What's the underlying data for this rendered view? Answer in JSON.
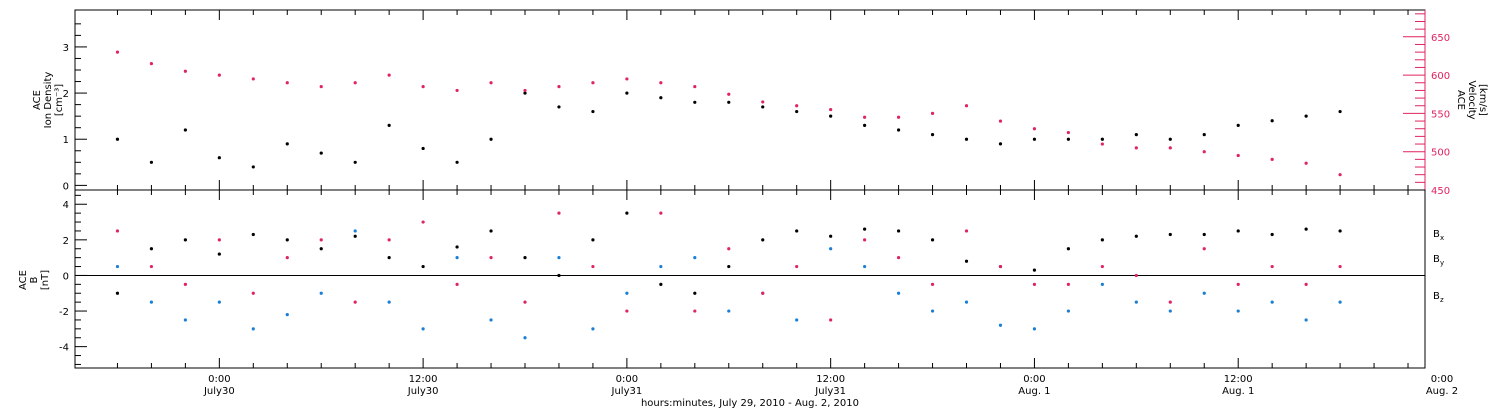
{
  "chart_data": [
    {
      "type": "scatter",
      "panel": "density-velocity",
      "ylabel_left": [
        "ACE",
        "Ion Density",
        "[cm⁻³]"
      ],
      "ylabel_right": [
        "ACE",
        "Velocity",
        "[km/s]"
      ],
      "ylim_left": [
        -0.1,
        3.8
      ],
      "ylim_right": [
        450,
        685
      ],
      "yticks_left": [
        "0",
        "1",
        "2",
        "3"
      ],
      "yticks_right": [
        "450",
        "500",
        "550",
        "600",
        "650"
      ],
      "series": [
        {
          "axis": "left",
          "color": "#000000",
          "points": [
            [
              -6,
              1.0
            ],
            [
              -4,
              0.5
            ],
            [
              -2,
              1.2
            ],
            [
              0,
              0.6
            ],
            [
              2,
              0.4
            ],
            [
              4,
              0.9
            ],
            [
              6,
              0.7
            ],
            [
              8,
              0.5
            ],
            [
              10,
              1.3
            ],
            [
              12,
              0.8
            ],
            [
              14,
              0.5
            ],
            [
              16,
              1.0
            ],
            [
              18,
              2.0
            ],
            [
              20,
              1.7
            ],
            [
              22,
              1.6
            ],
            [
              24,
              2.0
            ],
            [
              26,
              1.9
            ],
            [
              28,
              1.8
            ],
            [
              30,
              1.8
            ],
            [
              32,
              1.7
            ],
            [
              34,
              1.6
            ],
            [
              36,
              1.5
            ],
            [
              38,
              1.3
            ],
            [
              40,
              1.2
            ],
            [
              42,
              1.1
            ],
            [
              44,
              1.0
            ],
            [
              46,
              0.9
            ],
            [
              48,
              1.0
            ],
            [
              50,
              1.0
            ],
            [
              52,
              1.0
            ],
            [
              54,
              1.1
            ],
            [
              56,
              1.0
            ],
            [
              58,
              1.1
            ],
            [
              60,
              1.3
            ],
            [
              62,
              1.4
            ],
            [
              64,
              1.5
            ],
            [
              66,
              1.6
            ]
          ]
        },
        {
          "axis": "right",
          "color": "#e0245e",
          "points": [
            [
              -6,
              630
            ],
            [
              -4,
              615
            ],
            [
              -2,
              605
            ],
            [
              0,
              600
            ],
            [
              2,
              595
            ],
            [
              4,
              590
            ],
            [
              6,
              585
            ],
            [
              8,
              590
            ],
            [
              10,
              600
            ],
            [
              12,
              585
            ],
            [
              14,
              580
            ],
            [
              16,
              590
            ],
            [
              18,
              580
            ],
            [
              20,
              585
            ],
            [
              22,
              590
            ],
            [
              24,
              595
            ],
            [
              26,
              590
            ],
            [
              28,
              585
            ],
            [
              30,
              575
            ],
            [
              32,
              565
            ],
            [
              34,
              560
            ],
            [
              36,
              555
            ],
            [
              38,
              545
            ],
            [
              40,
              545
            ],
            [
              42,
              550
            ],
            [
              44,
              560
            ],
            [
              46,
              540
            ],
            [
              48,
              530
            ],
            [
              50,
              525
            ],
            [
              52,
              510
            ],
            [
              54,
              505
            ],
            [
              56,
              505
            ],
            [
              58,
              500
            ],
            [
              60,
              495
            ],
            [
              62,
              490
            ],
            [
              64,
              485
            ],
            [
              66,
              470
            ]
          ]
        }
      ]
    },
    {
      "type": "scatter",
      "panel": "magnetic-field",
      "ylabel": [
        "ACE",
        "B",
        "[nT]"
      ],
      "ylim": [
        -5.2,
        4.8
      ],
      "yticks": [
        "-4",
        "-2",
        "0",
        "2",
        "4"
      ],
      "legend": [
        {
          "label": "B",
          "sub": "x",
          "color": "#000000"
        },
        {
          "label": "B",
          "sub": "y",
          "color": "#1a7fd4"
        },
        {
          "label": "B",
          "sub": "z",
          "color": "#e0245e"
        }
      ],
      "series": [
        {
          "name": "Bx",
          "color": "#000000",
          "points": [
            [
              -6,
              -1.0
            ],
            [
              -4,
              1.5
            ],
            [
              -2,
              2.0
            ],
            [
              0,
              1.2
            ],
            [
              2,
              2.3
            ],
            [
              4,
              2.0
            ],
            [
              6,
              1.5
            ],
            [
              8,
              2.2
            ],
            [
              10,
              1.0
            ],
            [
              12,
              0.5
            ],
            [
              14,
              1.6
            ],
            [
              16,
              2.5
            ],
            [
              18,
              1.0
            ],
            [
              20,
              0.0
            ],
            [
              22,
              2.0
            ],
            [
              24,
              3.5
            ],
            [
              26,
              -0.5
            ],
            [
              28,
              -1.0
            ],
            [
              30,
              0.5
            ],
            [
              32,
              2.0
            ],
            [
              34,
              2.5
            ],
            [
              36,
              2.2
            ],
            [
              38,
              2.6
            ],
            [
              40,
              2.5
            ],
            [
              42,
              2.0
            ],
            [
              44,
              0.8
            ],
            [
              46,
              0.5
            ],
            [
              48,
              0.3
            ],
            [
              50,
              1.5
            ],
            [
              52,
              2.0
            ],
            [
              54,
              2.2
            ],
            [
              56,
              2.3
            ],
            [
              58,
              2.3
            ],
            [
              60,
              2.5
            ],
            [
              62,
              2.3
            ],
            [
              64,
              2.6
            ],
            [
              66,
              2.5
            ]
          ]
        },
        {
          "name": "By",
          "color": "#1a7fd4",
          "points": [
            [
              -6,
              0.5
            ],
            [
              -4,
              -1.5
            ],
            [
              -2,
              -2.5
            ],
            [
              0,
              -1.5
            ],
            [
              2,
              -3.0
            ],
            [
              4,
              -2.2
            ],
            [
              6,
              -1.0
            ],
            [
              8,
              2.5
            ],
            [
              10,
              -1.5
            ],
            [
              12,
              -3.0
            ],
            [
              14,
              1.0
            ],
            [
              16,
              -2.5
            ],
            [
              18,
              -3.5
            ],
            [
              20,
              1.0
            ],
            [
              22,
              -3.0
            ],
            [
              24,
              -1.0
            ],
            [
              26,
              0.5
            ],
            [
              28,
              1.0
            ],
            [
              30,
              -2.0
            ],
            [
              32,
              -1.0
            ],
            [
              34,
              -2.5
            ],
            [
              36,
              1.5
            ],
            [
              38,
              0.5
            ],
            [
              40,
              -1.0
            ],
            [
              42,
              -2.0
            ],
            [
              44,
              -1.5
            ],
            [
              46,
              -2.8
            ],
            [
              48,
              -3.0
            ],
            [
              50,
              -2.0
            ],
            [
              52,
              -0.5
            ],
            [
              54,
              -1.5
            ],
            [
              56,
              -2.0
            ],
            [
              58,
              -1.0
            ],
            [
              60,
              -2.0
            ],
            [
              62,
              -1.5
            ],
            [
              64,
              -2.5
            ],
            [
              66,
              -1.5
            ]
          ]
        },
        {
          "name": "Bz",
          "color": "#e0245e",
          "points": [
            [
              -6,
              2.5
            ],
            [
              -4,
              0.5
            ],
            [
              -2,
              -0.5
            ],
            [
              0,
              2.0
            ],
            [
              2,
              -1.0
            ],
            [
              4,
              1.0
            ],
            [
              6,
              2.0
            ],
            [
              8,
              -1.5
            ],
            [
              10,
              2.0
            ],
            [
              12,
              3.0
            ],
            [
              14,
              -0.5
            ],
            [
              16,
              1.0
            ],
            [
              18,
              -1.5
            ],
            [
              20,
              3.5
            ],
            [
              22,
              0.5
            ],
            [
              24,
              -2.0
            ],
            [
              26,
              3.5
            ],
            [
              28,
              -2.0
            ],
            [
              30,
              1.5
            ],
            [
              32,
              -1.0
            ],
            [
              34,
              0.5
            ],
            [
              36,
              -2.5
            ],
            [
              38,
              2.0
            ],
            [
              40,
              1.0
            ],
            [
              42,
              -0.5
            ],
            [
              44,
              2.5
            ],
            [
              46,
              0.5
            ],
            [
              48,
              -0.5
            ],
            [
              50,
              -0.5
            ],
            [
              52,
              0.5
            ],
            [
              54,
              0.0
            ],
            [
              56,
              -1.5
            ],
            [
              58,
              1.5
            ],
            [
              60,
              -0.5
            ],
            [
              62,
              0.5
            ],
            [
              64,
              -0.5
            ],
            [
              66,
              0.5
            ]
          ]
        }
      ]
    }
  ],
  "x_axis": {
    "xlim_hours": [
      -8.5,
      71
    ],
    "ticks": [
      {
        "h": 0,
        "time": "0:00",
        "date": "July30"
      },
      {
        "h": 12,
        "time": "12:00",
        "date": "July30"
      },
      {
        "h": 24,
        "time": "0:00",
        "date": "July31"
      },
      {
        "h": 36,
        "time": "12:00",
        "date": "July31"
      },
      {
        "h": 48,
        "time": "0:00",
        "date": "Aug. 1"
      },
      {
        "h": 60,
        "time": "12:00",
        "date": "Aug. 1"
      },
      {
        "h": 72,
        "time": "0:00",
        "date": "Aug. 2"
      }
    ],
    "title": "hours:minutes, July 29, 2010 - Aug.  2, 2010"
  }
}
